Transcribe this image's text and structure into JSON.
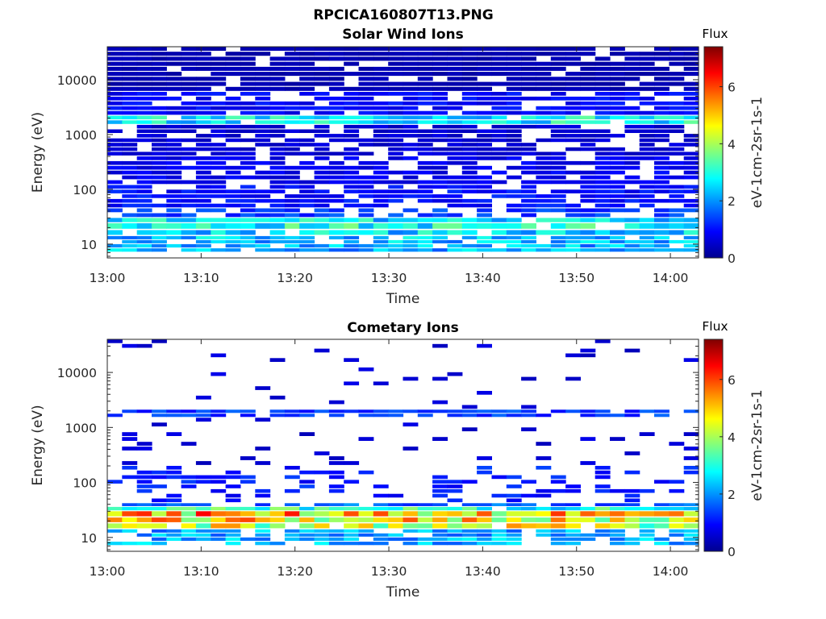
{
  "figure_title": "RPCICA160807T13.PNG",
  "colormap": [
    "#00008f",
    "#0000ff",
    "#007fff",
    "#00ffff",
    "#7fff7f",
    "#ffff00",
    "#ff7f00",
    "#ff0000",
    "#7f0000"
  ],
  "chart_data": [
    {
      "type": "heatmap",
      "title": "Solar Wind Ions",
      "xlabel": "Time",
      "ylabel": "Energy (eV)",
      "x_ticks": [
        "13:00",
        "13:10",
        "13:20",
        "13:30",
        "13:40",
        "13:50",
        "14:00"
      ],
      "x_range_minutes": [
        0,
        63
      ],
      "y_ticks": [
        "10",
        "100",
        "1000",
        "10000"
      ],
      "y_scale": "log",
      "y_range": [
        5.6,
        40000
      ],
      "colorbar": {
        "title": "Flux",
        "label": "eV-1cm-2sr-1s-1",
        "ticks": [
          "0",
          "2",
          "4",
          "6"
        ],
        "range": [
          0,
          7.4
        ]
      },
      "bands": [
        {
          "emin": 7,
          "emax": 10,
          "level": 2.2,
          "fill": 0.85
        },
        {
          "emin": 10,
          "emax": 14,
          "level": 2.3,
          "fill": 0.8
        },
        {
          "emin": 14,
          "emax": 18,
          "level": 2.5,
          "fill": 0.9
        },
        {
          "emin": 18,
          "emax": 24,
          "level": 2.9,
          "fill": 0.95
        },
        {
          "emin": 24,
          "emax": 30,
          "level": 2.6,
          "fill": 0.95
        },
        {
          "emin": 30,
          "emax": 45,
          "level": 1.3,
          "fill": 0.7
        },
        {
          "emin": 45,
          "emax": 120,
          "level": 1.0,
          "fill": 0.75
        },
        {
          "emin": 120,
          "emax": 400,
          "level": 0.8,
          "fill": 0.75
        },
        {
          "emin": 400,
          "emax": 1500,
          "level": 0.6,
          "fill": 0.75
        },
        {
          "emin": 1500,
          "emax": 2200,
          "level": 2.7,
          "fill": 0.95
        },
        {
          "emin": 2200,
          "emax": 6000,
          "level": 0.9,
          "fill": 0.8
        },
        {
          "emin": 6000,
          "emax": 40000,
          "level": 0.35,
          "fill": 0.9
        }
      ]
    },
    {
      "type": "heatmap",
      "title": "Cometary Ions",
      "xlabel": "Time",
      "ylabel": "Energy (eV)",
      "x_ticks": [
        "13:00",
        "13:10",
        "13:20",
        "13:30",
        "13:40",
        "13:50",
        "14:00"
      ],
      "x_range_minutes": [
        0,
        63
      ],
      "y_ticks": [
        "10",
        "100",
        "1000",
        "10000"
      ],
      "y_scale": "log",
      "y_range": [
        5.6,
        40000
      ],
      "colorbar": {
        "title": "Flux",
        "label": "eV-1cm-2sr-1s-1",
        "ticks": [
          "0",
          "2",
          "4",
          "6"
        ],
        "range": [
          0,
          7.4
        ]
      },
      "bands": [
        {
          "emin": 7,
          "emax": 10,
          "level": 2.2,
          "fill": 0.7
        },
        {
          "emin": 10,
          "emax": 14,
          "level": 2.1,
          "fill": 0.8
        },
        {
          "emin": 14,
          "emax": 18,
          "level": 4.2,
          "fill": 0.95
        },
        {
          "emin": 18,
          "emax": 23,
          "level": 4.6,
          "fill": 1.0
        },
        {
          "emin": 23,
          "emax": 30,
          "level": 5.0,
          "fill": 1.0
        },
        {
          "emin": 30,
          "emax": 36,
          "level": 3.0,
          "fill": 0.95
        },
        {
          "emin": 36,
          "emax": 42,
          "level": 1.6,
          "fill": 0.8
        },
        {
          "emin": 42,
          "emax": 200,
          "level": 1.1,
          "fill": 0.25
        },
        {
          "emin": 200,
          "emax": 1500,
          "level": 0.6,
          "fill": 0.08
        },
        {
          "emin": 1500,
          "emax": 2100,
          "level": 1.3,
          "fill": 0.8
        },
        {
          "emin": 2100,
          "emax": 40000,
          "level": 0.6,
          "fill": 0.04
        }
      ]
    }
  ]
}
